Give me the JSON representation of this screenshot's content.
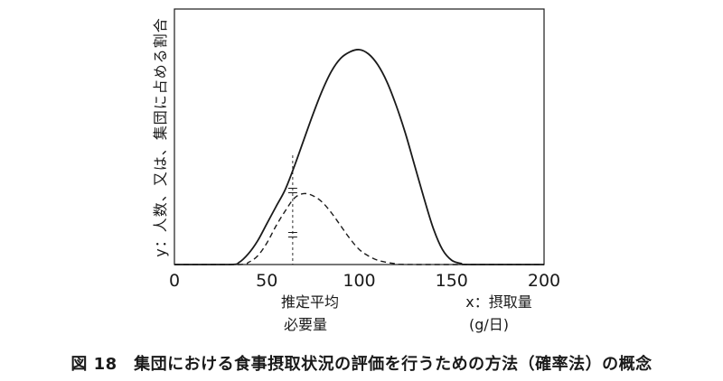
{
  "caption": "図 18　集団における食事摂取状況の評価を行うための方法（確率法）の概念",
  "chart_data": {
    "type": "line",
    "title": "",
    "xlabel": "x：摂取量",
    "xlabel_unit": "(g/日)",
    "ylabel": "y：人数、又は、集団に占める割合",
    "xlim": [
      0,
      200
    ],
    "ylim": [
      0,
      1
    ],
    "x_ticks": [
      0,
      50,
      100,
      150,
      200
    ],
    "annotation": {
      "label_line1": "推定平均",
      "label_line2": "必要量",
      "x": 64
    },
    "series": [
      {
        "style": "solid",
        "points": [
          [
            0,
            0
          ],
          [
            30,
            0
          ],
          [
            35,
            0.01
          ],
          [
            40,
            0.05
          ],
          [
            45,
            0.11
          ],
          [
            50,
            0.19
          ],
          [
            55,
            0.27
          ],
          [
            60,
            0.35
          ],
          [
            65,
            0.46
          ],
          [
            70,
            0.58
          ],
          [
            75,
            0.7
          ],
          [
            80,
            0.81
          ],
          [
            85,
            0.9
          ],
          [
            90,
            0.96
          ],
          [
            95,
            0.99
          ],
          [
            100,
            1.0
          ],
          [
            105,
            0.98
          ],
          [
            110,
            0.93
          ],
          [
            115,
            0.85
          ],
          [
            120,
            0.74
          ],
          [
            125,
            0.61
          ],
          [
            130,
            0.46
          ],
          [
            135,
            0.31
          ],
          [
            140,
            0.17
          ],
          [
            145,
            0.07
          ],
          [
            150,
            0.02
          ],
          [
            155,
            0.005
          ],
          [
            160,
            0
          ],
          [
            200,
            0
          ]
        ]
      },
      {
        "style": "dashed",
        "points": [
          [
            0,
            0
          ],
          [
            35,
            0
          ],
          [
            40,
            0.01
          ],
          [
            45,
            0.04
          ],
          [
            50,
            0.1
          ],
          [
            55,
            0.18
          ],
          [
            60,
            0.25
          ],
          [
            65,
            0.31
          ],
          [
            70,
            0.33
          ],
          [
            75,
            0.32
          ],
          [
            80,
            0.29
          ],
          [
            85,
            0.24
          ],
          [
            90,
            0.18
          ],
          [
            95,
            0.12
          ],
          [
            100,
            0.07
          ],
          [
            105,
            0.04
          ],
          [
            110,
            0.02
          ],
          [
            115,
            0.01
          ],
          [
            120,
            0.004
          ],
          [
            130,
            0
          ],
          [
            200,
            0
          ]
        ]
      }
    ],
    "grid": false
  },
  "colors": {
    "line": "#1a1a1a",
    "frame": "#1a1a1a"
  }
}
